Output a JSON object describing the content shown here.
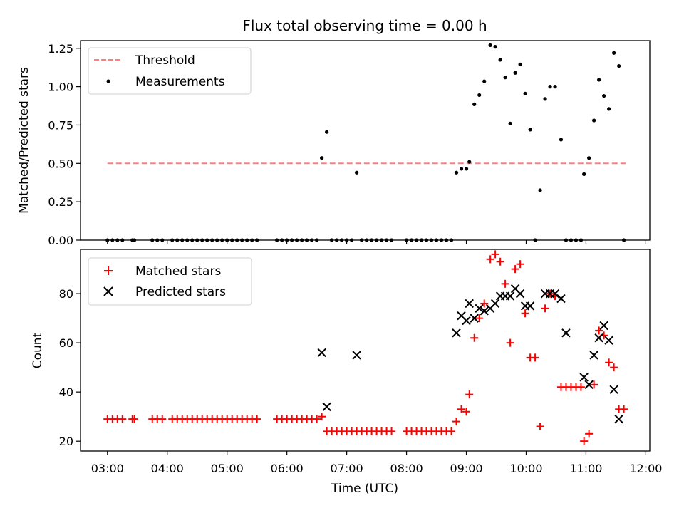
{
  "title": "Flux total observing time = 0.00 h",
  "colors": {
    "threshold": "#ff7f7f",
    "measurement": "#000000",
    "matched": "#ff0000",
    "predicted": "#000000"
  },
  "chart_data": [
    {
      "type": "scatter",
      "ylabel": "Matched/Predicted stars",
      "ylim": [
        0,
        1.3
      ],
      "yticks": [
        "0.00",
        "0.25",
        "0.50",
        "0.75",
        "1.00",
        "1.25"
      ],
      "xlim": [
        "02:33",
        "12:04"
      ],
      "legend": {
        "placement": "upper-left",
        "entries": [
          "Threshold",
          "Measurements"
        ]
      },
      "threshold": {
        "name": "Threshold",
        "value": 0.5,
        "x_start": "03:00",
        "x_end": "11:40",
        "style": "dashed"
      },
      "series": [
        {
          "name": "Measurements",
          "points": [
            [
              "03:00",
              0
            ],
            [
              "03:05",
              0
            ],
            [
              "03:10",
              0
            ],
            [
              "03:15",
              0
            ],
            [
              "03:25",
              0
            ],
            [
              "03:27",
              0
            ],
            [
              "03:45",
              0
            ],
            [
              "03:50",
              0
            ],
            [
              "03:55",
              0
            ],
            [
              "04:05",
              0
            ],
            [
              "04:10",
              0
            ],
            [
              "04:15",
              0
            ],
            [
              "04:20",
              0
            ],
            [
              "04:25",
              0
            ],
            [
              "04:30",
              0
            ],
            [
              "04:35",
              0
            ],
            [
              "04:40",
              0
            ],
            [
              "04:45",
              0
            ],
            [
              "04:50",
              0
            ],
            [
              "04:55",
              0
            ],
            [
              "05:00",
              0
            ],
            [
              "05:05",
              0
            ],
            [
              "05:10",
              0
            ],
            [
              "05:15",
              0
            ],
            [
              "05:20",
              0
            ],
            [
              "05:25",
              0
            ],
            [
              "05:30",
              0
            ],
            [
              "05:50",
              0
            ],
            [
              "05:55",
              0
            ],
            [
              "06:00",
              0
            ],
            [
              "06:05",
              0
            ],
            [
              "06:10",
              0
            ],
            [
              "06:15",
              0
            ],
            [
              "06:20",
              0
            ],
            [
              "06:25",
              0
            ],
            [
              "06:30",
              0
            ],
            [
              "06:35",
              0.535
            ],
            [
              "06:40",
              0.705
            ],
            [
              "06:45",
              0
            ],
            [
              "06:50",
              0
            ],
            [
              "06:55",
              0
            ],
            [
              "07:00",
              0
            ],
            [
              "07:05",
              0
            ],
            [
              "07:10",
              0.44
            ],
            [
              "07:15",
              0
            ],
            [
              "07:20",
              0
            ],
            [
              "07:25",
              0
            ],
            [
              "07:30",
              0
            ],
            [
              "07:35",
              0
            ],
            [
              "07:40",
              0
            ],
            [
              "07:45",
              0
            ],
            [
              "08:00",
              0
            ],
            [
              "08:05",
              0
            ],
            [
              "08:10",
              0
            ],
            [
              "08:15",
              0
            ],
            [
              "08:20",
              0
            ],
            [
              "08:25",
              0
            ],
            [
              "08:30",
              0
            ],
            [
              "08:35",
              0
            ],
            [
              "08:40",
              0
            ],
            [
              "08:45",
              0
            ],
            [
              "08:50",
              0.44
            ],
            [
              "08:55",
              0.465
            ],
            [
              "09:00",
              0.465
            ],
            [
              "09:03",
              0.51
            ],
            [
              "09:08",
              0.885
            ],
            [
              "09:13",
              0.945
            ],
            [
              "09:18",
              1.035
            ],
            [
              "09:24",
              1.27
            ],
            [
              "09:29",
              1.26
            ],
            [
              "09:34",
              1.175
            ],
            [
              "09:39",
              1.06
            ],
            [
              "09:44",
              0.76
            ],
            [
              "09:49",
              1.09
            ],
            [
              "09:54",
              1.145
            ],
            [
              "09:59",
              0.955
            ],
            [
              "10:04",
              0.72
            ],
            [
              "10:09",
              0
            ],
            [
              "10:14",
              0.325
            ],
            [
              "10:19",
              0.92
            ],
            [
              "10:24",
              1.0
            ],
            [
              "10:29",
              1.0
            ],
            [
              "10:35",
              0.655
            ],
            [
              "10:40",
              0
            ],
            [
              "10:45",
              0
            ],
            [
              "10:50",
              0
            ],
            [
              "10:55",
              0
            ],
            [
              "10:58",
              0.43
            ],
            [
              "11:03",
              0.535
            ],
            [
              "11:08",
              0.78
            ],
            [
              "11:13",
              1.045
            ],
            [
              "11:18",
              0.94
            ],
            [
              "11:23",
              0.855
            ],
            [
              "11:28",
              1.22
            ],
            [
              "11:33",
              1.135
            ],
            [
              "11:38",
              0
            ]
          ]
        }
      ],
      "xticks": []
    },
    {
      "type": "scatter",
      "ylabel": "Count",
      "xlabel": "Time (UTC)",
      "ylim": [
        16,
        98
      ],
      "yticks": [
        "20",
        "40",
        "60",
        "80"
      ],
      "xlim": [
        "02:33",
        "12:04"
      ],
      "xticks": [
        "03:00",
        "04:00",
        "05:00",
        "06:00",
        "07:00",
        "08:00",
        "09:00",
        "10:00",
        "11:00",
        "12:00"
      ],
      "legend": {
        "placement": "upper-left",
        "entries": [
          "Matched stars",
          "Predicted stars"
        ]
      },
      "series": [
        {
          "name": "Matched stars",
          "marker": "plus",
          "points": [
            [
              "03:00",
              29
            ],
            [
              "03:05",
              29
            ],
            [
              "03:10",
              29
            ],
            [
              "03:15",
              29
            ],
            [
              "03:25",
              29
            ],
            [
              "03:27",
              29
            ],
            [
              "03:45",
              29
            ],
            [
              "03:50",
              29
            ],
            [
              "03:55",
              29
            ],
            [
              "04:05",
              29
            ],
            [
              "04:10",
              29
            ],
            [
              "04:15",
              29
            ],
            [
              "04:20",
              29
            ],
            [
              "04:25",
              29
            ],
            [
              "04:30",
              29
            ],
            [
              "04:35",
              29
            ],
            [
              "04:40",
              29
            ],
            [
              "04:45",
              29
            ],
            [
              "04:50",
              29
            ],
            [
              "04:55",
              29
            ],
            [
              "05:00",
              29
            ],
            [
              "05:05",
              29
            ],
            [
              "05:10",
              29
            ],
            [
              "05:15",
              29
            ],
            [
              "05:20",
              29
            ],
            [
              "05:25",
              29
            ],
            [
              "05:30",
              29
            ],
            [
              "05:50",
              29
            ],
            [
              "05:55",
              29
            ],
            [
              "06:00",
              29
            ],
            [
              "06:05",
              29
            ],
            [
              "06:10",
              29
            ],
            [
              "06:15",
              29
            ],
            [
              "06:20",
              29
            ],
            [
              "06:25",
              29
            ],
            [
              "06:30",
              29
            ],
            [
              "06:35",
              30
            ],
            [
              "06:40",
              24
            ],
            [
              "06:45",
              24
            ],
            [
              "06:50",
              24
            ],
            [
              "06:55",
              24
            ],
            [
              "07:00",
              24
            ],
            [
              "07:05",
              24
            ],
            [
              "07:10",
              24
            ],
            [
              "07:15",
              24
            ],
            [
              "07:20",
              24
            ],
            [
              "07:25",
              24
            ],
            [
              "07:30",
              24
            ],
            [
              "07:35",
              24
            ],
            [
              "07:40",
              24
            ],
            [
              "07:45",
              24
            ],
            [
              "08:00",
              24
            ],
            [
              "08:05",
              24
            ],
            [
              "08:10",
              24
            ],
            [
              "08:15",
              24
            ],
            [
              "08:20",
              24
            ],
            [
              "08:25",
              24
            ],
            [
              "08:30",
              24
            ],
            [
              "08:35",
              24
            ],
            [
              "08:40",
              24
            ],
            [
              "08:45",
              24
            ],
            [
              "08:50",
              28
            ],
            [
              "08:55",
              33
            ],
            [
              "09:00",
              32
            ],
            [
              "09:03",
              39
            ],
            [
              "09:08",
              62
            ],
            [
              "09:13",
              70
            ],
            [
              "09:18",
              76
            ],
            [
              "09:24",
              94
            ],
            [
              "09:29",
              96
            ],
            [
              "09:34",
              93
            ],
            [
              "09:39",
              84
            ],
            [
              "09:44",
              60
            ],
            [
              "09:49",
              90
            ],
            [
              "09:54",
              92
            ],
            [
              "09:59",
              72
            ],
            [
              "10:04",
              54
            ],
            [
              "10:09",
              54
            ],
            [
              "10:14",
              26
            ],
            [
              "10:19",
              74
            ],
            [
              "10:24",
              80
            ],
            [
              "10:29",
              79
            ],
            [
              "10:35",
              42
            ],
            [
              "10:40",
              42
            ],
            [
              "10:45",
              42
            ],
            [
              "10:50",
              42
            ],
            [
              "10:55",
              42
            ],
            [
              "10:58",
              20
            ],
            [
              "11:03",
              23
            ],
            [
              "11:08",
              43
            ],
            [
              "11:13",
              65
            ],
            [
              "11:18",
              63
            ],
            [
              "11:23",
              52
            ],
            [
              "11:28",
              50
            ],
            [
              "11:33",
              33
            ],
            [
              "11:38",
              33
            ]
          ]
        },
        {
          "name": "Predicted stars",
          "marker": "x",
          "points": [
            [
              "06:35",
              56
            ],
            [
              "06:40",
              34
            ],
            [
              "07:10",
              55
            ],
            [
              "08:50",
              64
            ],
            [
              "08:55",
              71
            ],
            [
              "09:00",
              69
            ],
            [
              "09:03",
              76
            ],
            [
              "09:08",
              70
            ],
            [
              "09:13",
              74
            ],
            [
              "09:18",
              73
            ],
            [
              "09:24",
              74
            ],
            [
              "09:29",
              76
            ],
            [
              "09:34",
              79
            ],
            [
              "09:39",
              79
            ],
            [
              "09:44",
              79
            ],
            [
              "09:49",
              82
            ],
            [
              "09:54",
              80
            ],
            [
              "09:59",
              75
            ],
            [
              "10:04",
              75
            ],
            [
              "10:19",
              80
            ],
            [
              "10:24",
              80
            ],
            [
              "10:29",
              80
            ],
            [
              "10:35",
              78
            ],
            [
              "10:40",
              64
            ],
            [
              "10:58",
              46
            ],
            [
              "11:03",
              43
            ],
            [
              "11:08",
              55
            ],
            [
              "11:13",
              62
            ],
            [
              "11:18",
              67
            ],
            [
              "11:23",
              61
            ],
            [
              "11:28",
              41
            ],
            [
              "11:33",
              29
            ]
          ]
        }
      ]
    }
  ]
}
